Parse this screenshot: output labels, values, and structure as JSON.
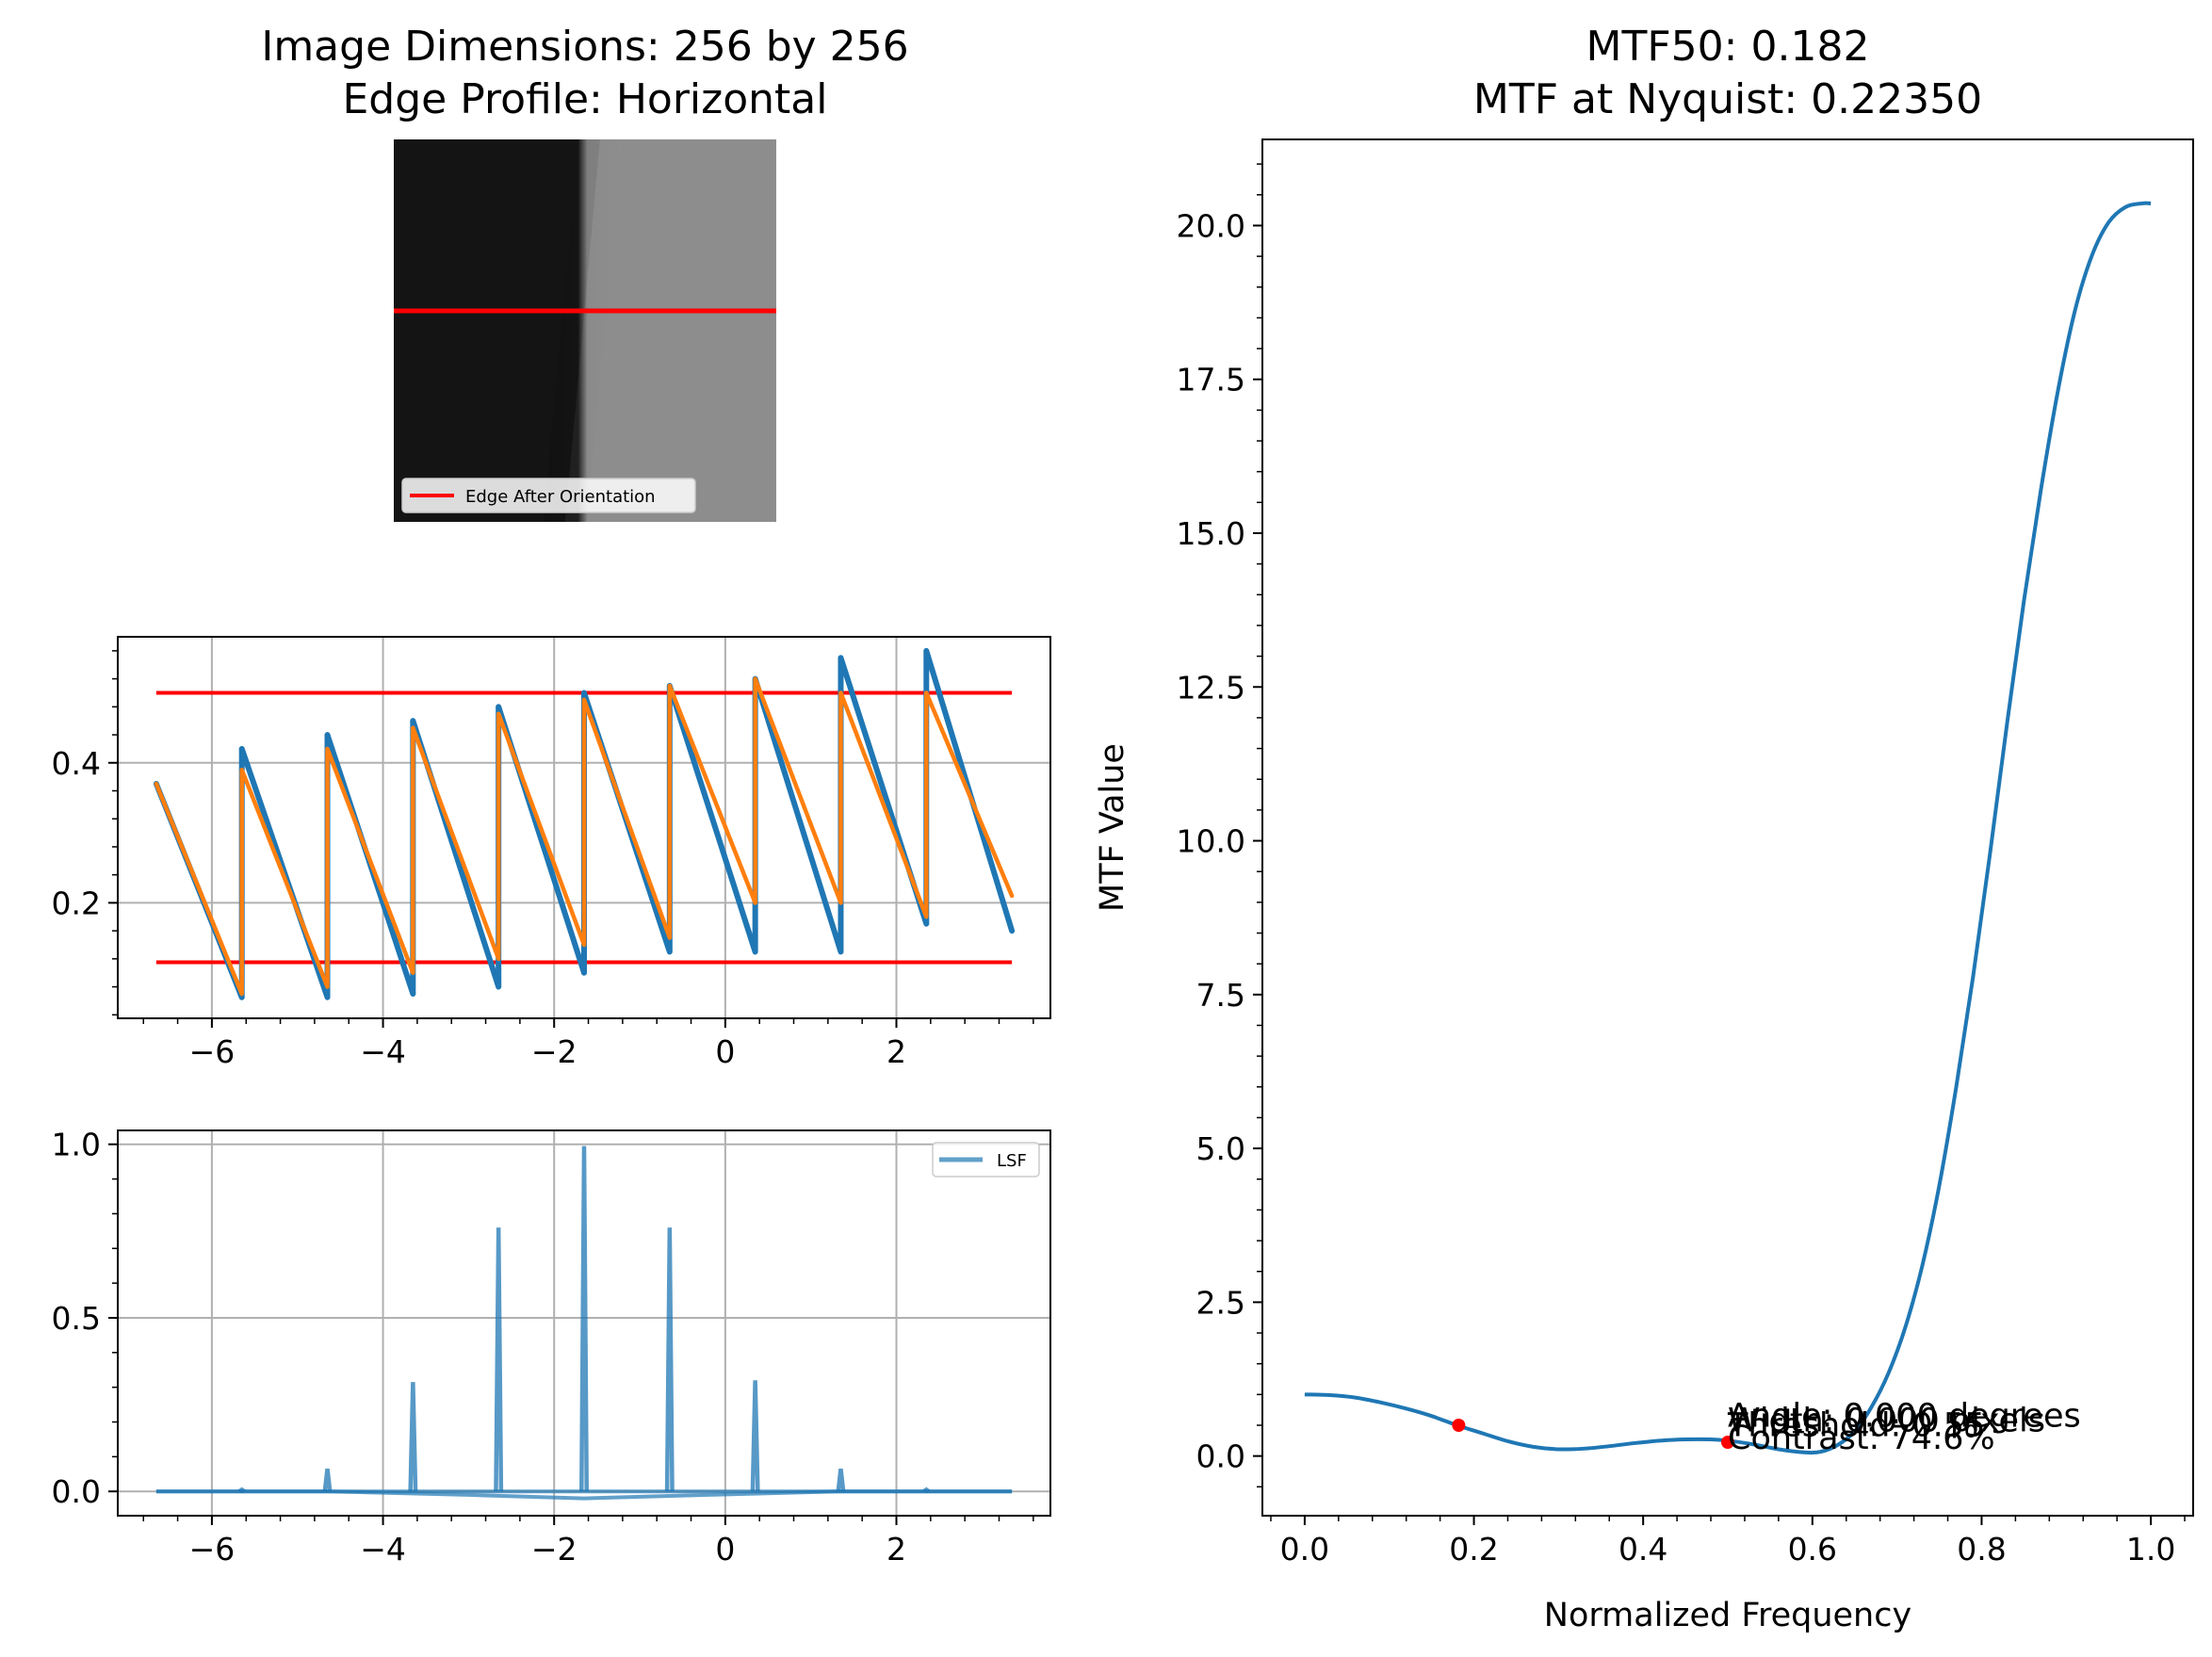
{
  "image_panel": {
    "title_line1": "Image Dimensions: 256 by 256",
    "title_line2": "Edge Profile: Horizontal",
    "legend_label": "Edge After Orientation",
    "edge_color": "#ff0000"
  },
  "chart_data": [
    {
      "type": "line",
      "name": "esf-panel",
      "xlim": [
        -7.1,
        3.8
      ],
      "ylim": [
        0.035,
        0.58
      ],
      "xticks": [
        -6,
        -4,
        -2,
        0,
        2
      ],
      "xtick_labels": [
        "−6",
        "−4",
        "−2",
        "0",
        "2"
      ],
      "yticks": [
        0.2,
        0.4
      ],
      "ytick_labels": [
        "0.2",
        "0.4"
      ],
      "grid": true,
      "threshold_lines": [
        0.5,
        0.115
      ],
      "threshold_color": "#ff0000",
      "series": [
        {
          "color": "#1f77b4",
          "segments": [
            [
              [
                -6.65,
                0.37
              ],
              [
                -5.65,
                0.065
              ]
            ],
            [
              [
                -5.65,
                0.42
              ],
              [
                -4.65,
                0.065
              ]
            ],
            [
              [
                -4.65,
                0.44
              ],
              [
                -3.65,
                0.07
              ]
            ],
            [
              [
                -3.65,
                0.46
              ],
              [
                -2.65,
                0.08
              ]
            ],
            [
              [
                -2.65,
                0.48
              ],
              [
                -1.65,
                0.1
              ]
            ],
            [
              [
                -1.65,
                0.5
              ],
              [
                -0.65,
                0.13
              ]
            ],
            [
              [
                -0.65,
                0.51
              ],
              [
                0.35,
                0.13
              ]
            ],
            [
              [
                0.35,
                0.52
              ],
              [
                1.35,
                0.13
              ]
            ],
            [
              [
                1.35,
                0.55
              ],
              [
                2.35,
                0.17
              ]
            ],
            [
              [
                2.35,
                0.56
              ],
              [
                3.35,
                0.16
              ]
            ]
          ]
        },
        {
          "color": "#ff7f0e",
          "segments": [
            [
              [
                -6.65,
                0.37
              ],
              [
                -5.65,
                0.07
              ]
            ],
            [
              [
                -5.65,
                0.39
              ],
              [
                -4.65,
                0.08
              ]
            ],
            [
              [
                -4.65,
                0.42
              ],
              [
                -3.65,
                0.1
              ]
            ],
            [
              [
                -3.65,
                0.45
              ],
              [
                -2.65,
                0.12
              ]
            ],
            [
              [
                -2.65,
                0.47
              ],
              [
                -1.65,
                0.14
              ]
            ],
            [
              [
                -1.65,
                0.49
              ],
              [
                -0.65,
                0.15
              ]
            ],
            [
              [
                -0.65,
                0.51
              ],
              [
                0.35,
                0.2
              ]
            ],
            [
              [
                0.35,
                0.52
              ],
              [
                1.35,
                0.2
              ]
            ],
            [
              [
                1.35,
                0.5
              ],
              [
                2.35,
                0.18
              ]
            ],
            [
              [
                2.35,
                0.5
              ],
              [
                3.35,
                0.21
              ]
            ]
          ]
        }
      ]
    },
    {
      "type": "line",
      "name": "lsf-panel",
      "xlim": [
        -7.1,
        3.8
      ],
      "ylim": [
        -0.07,
        1.04
      ],
      "xticks": [
        -6,
        -4,
        -2,
        0,
        2
      ],
      "xtick_labels": [
        "−6",
        "−4",
        "−2",
        "0",
        "2"
      ],
      "yticks": [
        0.0,
        0.5,
        1.0
      ],
      "ytick_labels": [
        "0.0",
        "0.5",
        "1.0"
      ],
      "grid": true,
      "legend": "top-right",
      "series": [
        {
          "name": "LSF",
          "color": "#1f77b4",
          "spikes_x": [
            -5.65,
            -4.65,
            -3.65,
            -2.65,
            -1.65,
            -0.65,
            0.35,
            1.35,
            2.35
          ],
          "spikes_y": [
            0.005,
            0.065,
            0.315,
            0.76,
            0.995,
            0.76,
            0.32,
            0.065,
            0.005
          ],
          "baseline": [
            [
              -6.65,
              0.0
            ],
            [
              -4.65,
              0.0
            ],
            [
              -3.0,
              -0.01
            ],
            [
              -1.65,
              -0.02
            ],
            [
              -0.2,
              -0.01
            ],
            [
              1.35,
              0.0
            ],
            [
              3.35,
              0.0
            ]
          ]
        }
      ]
    },
    {
      "type": "line",
      "name": "mtf-panel",
      "title_line1": "MTF50: 0.182",
      "title_line2": "MTF at Nyquist: 0.22350",
      "xlabel": "Normalized Frequency",
      "ylabel": "MTF Value",
      "xlim": [
        -0.05,
        1.05
      ],
      "ylim": [
        -0.97,
        21.4
      ],
      "xticks": [
        0.0,
        0.2,
        0.4,
        0.6,
        0.8,
        1.0
      ],
      "xtick_labels": [
        "0.0",
        "0.2",
        "0.4",
        "0.6",
        "0.8",
        "1.0"
      ],
      "yticks": [
        0.0,
        2.5,
        5.0,
        7.5,
        10.0,
        12.5,
        15.0,
        17.5,
        20.0
      ],
      "ytick_labels": [
        "0.0",
        "2.5",
        "5.0",
        "7.5",
        "10.0",
        "12.5",
        "15.0",
        "17.5",
        "20.0"
      ],
      "grid": false,
      "series": [
        {
          "color": "#1f77b4",
          "x": [
            0.0,
            0.03,
            0.06,
            0.09,
            0.12,
            0.15,
            0.18,
            0.21,
            0.24,
            0.27,
            0.3,
            0.33,
            0.36,
            0.39,
            0.42,
            0.45,
            0.48,
            0.5,
            0.53,
            0.56,
            0.59,
            0.61,
            0.63,
            0.65,
            0.67,
            0.69,
            0.71,
            0.73,
            0.75,
            0.77,
            0.79,
            0.81,
            0.83,
            0.85,
            0.87,
            0.89,
            0.91,
            0.93,
            0.95,
            0.97,
            0.99,
            1.0
          ],
          "y": [
            1.0,
            0.99,
            0.95,
            0.87,
            0.77,
            0.65,
            0.5,
            0.37,
            0.24,
            0.15,
            0.11,
            0.12,
            0.16,
            0.21,
            0.25,
            0.27,
            0.27,
            0.25,
            0.19,
            0.11,
            0.06,
            0.07,
            0.18,
            0.4,
            0.8,
            1.35,
            2.1,
            3.1,
            4.4,
            6.0,
            7.8,
            9.8,
            11.9,
            13.9,
            15.7,
            17.3,
            18.6,
            19.5,
            20.05,
            20.3,
            20.36,
            20.36
          ]
        }
      ],
      "markers": [
        {
          "x": 0.182,
          "y": 0.5,
          "color": "#ff0000"
        },
        {
          "x": 0.5,
          "y": 0.224,
          "color": "#ff0000"
        }
      ],
      "annotations": [
        {
          "text": "Angle: 0.000 degrees",
          "x": 0.5,
          "y": 0.48
        },
        {
          "text": "Width: 0.000 pixels",
          "x": 0.5,
          "y": 0.4
        },
        {
          "text": "Threshold: 0.55",
          "x": 0.5,
          "y": 0.32
        },
        {
          "text": "Contrast: 74.6%",
          "x": 0.5,
          "y": 0.12
        }
      ]
    }
  ]
}
